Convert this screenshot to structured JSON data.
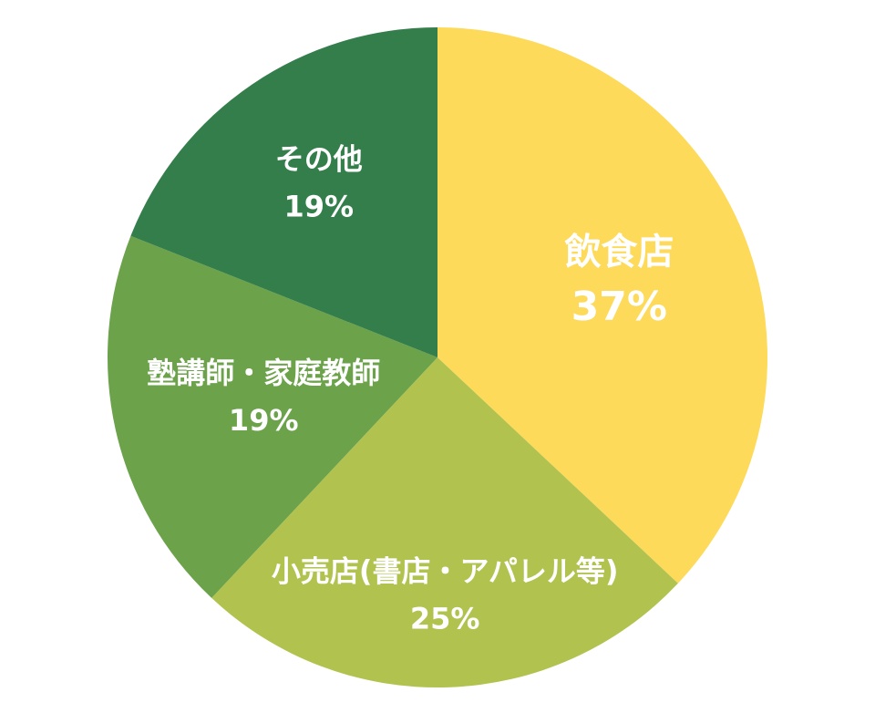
{
  "chart_data": {
    "type": "pie",
    "title": "",
    "start_angle_deg": 0,
    "direction": "clockwise",
    "slices": [
      {
        "label": "飲食店",
        "percent_label": "37%",
        "value": 37,
        "color": "#FDDA5A"
      },
      {
        "label": "小売店(書店・アパレル等)",
        "percent_label": "25%",
        "value": 25,
        "color": "#B1C34E"
      },
      {
        "label": "塾講師・家庭教師",
        "percent_label": "19%",
        "value": 19,
        "color": "#6BA24A"
      },
      {
        "label": "その他",
        "percent_label": "19%",
        "value": 19,
        "color": "#337E4A"
      }
    ],
    "legend": "none"
  }
}
